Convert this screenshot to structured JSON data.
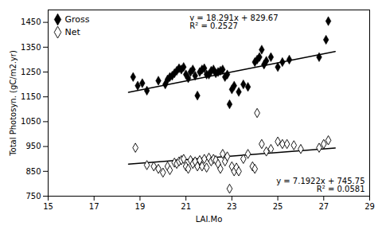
{
  "chart_data": {
    "type": "scatter",
    "xlabel": "LAI.Mo",
    "ylabel": "Total Photosyn. (gC/m2.yr)",
    "xlim": [
      15,
      29
    ],
    "ylim": [
      750,
      1500
    ],
    "xticks": [
      15,
      17,
      19,
      21,
      23,
      25,
      27,
      29
    ],
    "yticks": [
      750,
      850,
      950,
      1050,
      1150,
      1250,
      1350,
      1450
    ],
    "legend": "upper left",
    "series": [
      {
        "name": "Gross",
        "color": "black",
        "marker": "diamond",
        "x": [
          18.7,
          18.9,
          19.1,
          19.3,
          19.8,
          20.1,
          20.2,
          20.3,
          20.4,
          20.5,
          20.6,
          20.7,
          20.8,
          20.9,
          21.0,
          21.1,
          21.2,
          21.3,
          21.4,
          21.5,
          21.6,
          21.7,
          21.8,
          21.9,
          22.0,
          22.1,
          22.2,
          22.3,
          22.4,
          22.5,
          22.6,
          22.7,
          22.8,
          22.9,
          23.0,
          23.1,
          23.3,
          23.5,
          23.7,
          24.0,
          24.1,
          24.2,
          24.3,
          24.4,
          24.5,
          24.7,
          25.0,
          25.2,
          25.5,
          26.8,
          27.1,
          27.2
        ],
        "values": [
          1230,
          1195,
          1205,
          1175,
          1215,
          1200,
          1220,
          1230,
          1235,
          1245,
          1255,
          1265,
          1260,
          1270,
          1240,
          1225,
          1250,
          1260,
          1235,
          1155,
          1250,
          1260,
          1265,
          1240,
          1240,
          1255,
          1260,
          1245,
          1250,
          1255,
          1260,
          1230,
          1240,
          1120,
          1180,
          1195,
          1170,
          1200,
          1190,
          1290,
          1300,
          1310,
          1340,
          1280,
          1295,
          1310,
          1270,
          1290,
          1300,
          1310,
          1380,
          1455
        ]
      },
      {
        "name": "Net",
        "color": "black",
        "marker": "diamond_open",
        "x": [
          18.8,
          19.3,
          19.6,
          19.8,
          20.0,
          20.2,
          20.3,
          20.5,
          20.6,
          20.7,
          20.8,
          20.9,
          21.0,
          21.1,
          21.2,
          21.3,
          21.4,
          21.5,
          21.6,
          21.7,
          21.8,
          21.9,
          22.0,
          22.1,
          22.2,
          22.3,
          22.4,
          22.5,
          22.6,
          22.7,
          22.8,
          22.9,
          23.0,
          23.1,
          23.2,
          23.3,
          23.5,
          23.7,
          23.9,
          24.0,
          24.1,
          24.3,
          24.5,
          24.7,
          25.0,
          25.2,
          25.4,
          25.7,
          26.0,
          26.8,
          27.0,
          27.2
        ],
        "values": [
          945,
          875,
          870,
          860,
          845,
          870,
          855,
          885,
          880,
          890,
          895,
          900,
          870,
          860,
          895,
          880,
          890,
          870,
          895,
          870,
          900,
          865,
          905,
          890,
          900,
          895,
          880,
          860,
          920,
          890,
          910,
          780,
          870,
          850,
          865,
          850,
          900,
          920,
          870,
          860,
          1085,
          960,
          930,
          940,
          970,
          960,
          960,
          955,
          940,
          945,
          960,
          975
        ]
      },
      {
        "type": "line",
        "color": "black",
        "x": [
          18.5,
          27.5
        ],
        "values": [
          1168.0535,
          1332.6725
        ]
      },
      {
        "type": "line",
        "color": "black",
        "x": [
          18.5,
          27.5
        ],
        "values": [
          878.8057,
          943.5355
        ]
      }
    ],
    "annotations": [
      "y = 18.291x + 829.67",
      "R² = 0.2527",
      "y = 7.1922x + 745.75",
      "R² = 0.0581"
    ]
  }
}
